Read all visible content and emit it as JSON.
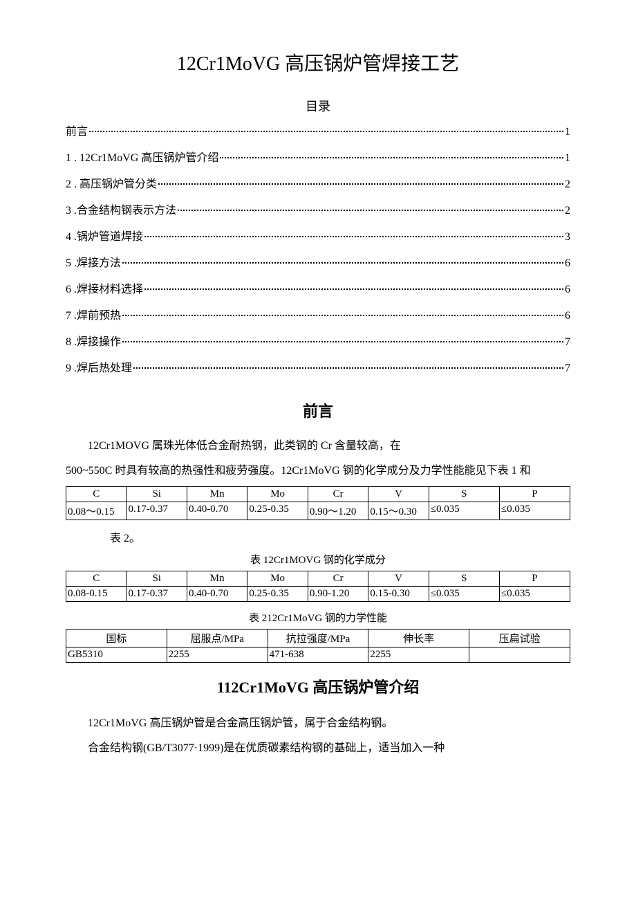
{
  "title": "12Cr1MoVG 高压锅炉管焊接工艺",
  "toc_heading": "目录",
  "toc": [
    {
      "label": "前言 ",
      "page": "1"
    },
    {
      "label": "1  . 12Cr1MoVG 高压锅炉管介绍 ",
      "page": "1"
    },
    {
      "label": "2  . 高压锅炉管分类",
      "page": "2"
    },
    {
      "label": "3  .合金结构钢表示方法 ",
      "page": "2"
    },
    {
      "label": "4  .锅炉管道焊接 ",
      "page": "3"
    },
    {
      "label": "5  .焊接方法 ",
      "page": "6"
    },
    {
      "label": "6  .焊接材料选择 ",
      "page": "6"
    },
    {
      "label": "7  .焊前预热 ",
      "page": "6"
    },
    {
      "label": "8  .焊接操作 ",
      "page": "7"
    },
    {
      "label": "9  .焊后热处理 ",
      "page": "7"
    }
  ],
  "preface_heading": "前言",
  "preface_paragraphs": [
    "12Cr1MOVG 属珠光体低合金耐热钢，此类钢的 Cr 含量较高，在",
    "500~550C 时具有较高的热强性和疲劳强度。12Cr1MoVG 钢的化学成分及力学性能能见下表 1 和"
  ],
  "table1": {
    "headers": [
      "C",
      "Si",
      "Mn",
      "Mo",
      "Cr",
      "V",
      "S",
      "P"
    ],
    "rows": [
      [
        "0.08～0.15",
        "0.17-0.37",
        "0.40-0.70",
        "0.25-0.35",
        "0.90～1.20",
        "0.15～0.30",
        "≤0.035",
        "≤0.035"
      ]
    ],
    "col_widths": [
      "12%",
      "12%",
      "12%",
      "12%",
      "12%",
      "12%",
      "14%",
      "14%"
    ]
  },
  "after_table1": "表 2。",
  "table2_caption": "表 12Cr1MOVG 钢的化学成分",
  "table2": {
    "headers": [
      "C",
      "Si",
      "Mn",
      "Mo",
      "Cr",
      "V",
      "S",
      "P"
    ],
    "rows": [
      [
        "0.08-0.15",
        "0.17-0.37",
        "0.40-0.70",
        "0.25-0.35",
        "0.90-1.20",
        "0.15-0.30",
        "≤0.035",
        "≤0.035"
      ]
    ],
    "col_widths": [
      "12%",
      "12%",
      "12%",
      "12%",
      "12%",
      "12%",
      "14%",
      "14%"
    ]
  },
  "table3_caption": "表 212Cr1MoVG 钢的力学性能",
  "table3": {
    "headers": [
      "国标",
      "屈服点/MPa",
      "抗拉强度/MPa",
      "伸长率",
      "压扁试验"
    ],
    "rows": [
      [
        "GB5310",
        "2255",
        "471-638",
        "2255",
        ""
      ]
    ],
    "col_widths": [
      "20%",
      "20%",
      "20%",
      "20%",
      "20%"
    ]
  },
  "section1_title": "112Cr1MoVG 高压锅炉管介绍",
  "section1_paragraphs": [
    "12Cr1MoVG 高压锅炉管是合金高压锅炉管，属于合金结构钢。",
    "合金结构钢(GB/T3077·1999)是在优质碳素结构钢的基础上，适当加入一种"
  ]
}
